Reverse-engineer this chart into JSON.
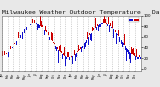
{
  "bg_color": "#e8e8e8",
  "plot_bg": "#ffffff",
  "grid_color": "#999999",
  "num_days": 730,
  "base_temp_mean": 54,
  "base_temp_amplitude": 32,
  "phase_shift": 80,
  "noise_scale_curr": 9,
  "noise_scale_prev": 9,
  "seed": 17,
  "ylim_low": -5,
  "ylim_high": 100,
  "color_above": "#cc0000",
  "color_below": "#1111cc",
  "legend_color_prev": "#1111cc",
  "legend_color_curr": "#cc0000",
  "bar_width": 0.5,
  "alpha": 1.0,
  "title_fontsize": 4.5,
  "title_text": "Milwaukee Weather Outdoor Temperature   Daily High   (Past/Previous Year)",
  "month_starts": [
    0,
    31,
    59,
    90,
    120,
    151,
    181,
    212,
    243,
    273,
    304,
    334,
    365,
    396,
    424,
    455,
    485,
    516,
    546,
    577,
    608,
    638,
    669,
    699
  ],
  "month_labels": [
    "Jan",
    "Feb",
    "Mar",
    "Apr",
    "May",
    "Jun",
    "Jul",
    "Aug",
    "Sep",
    "Oct",
    "Nov",
    "Dec",
    "Jan",
    "Feb",
    "Mar",
    "Apr",
    "May",
    "Jun",
    "Jul",
    "Aug",
    "Sep",
    "Oct",
    "Nov",
    "Dec"
  ]
}
